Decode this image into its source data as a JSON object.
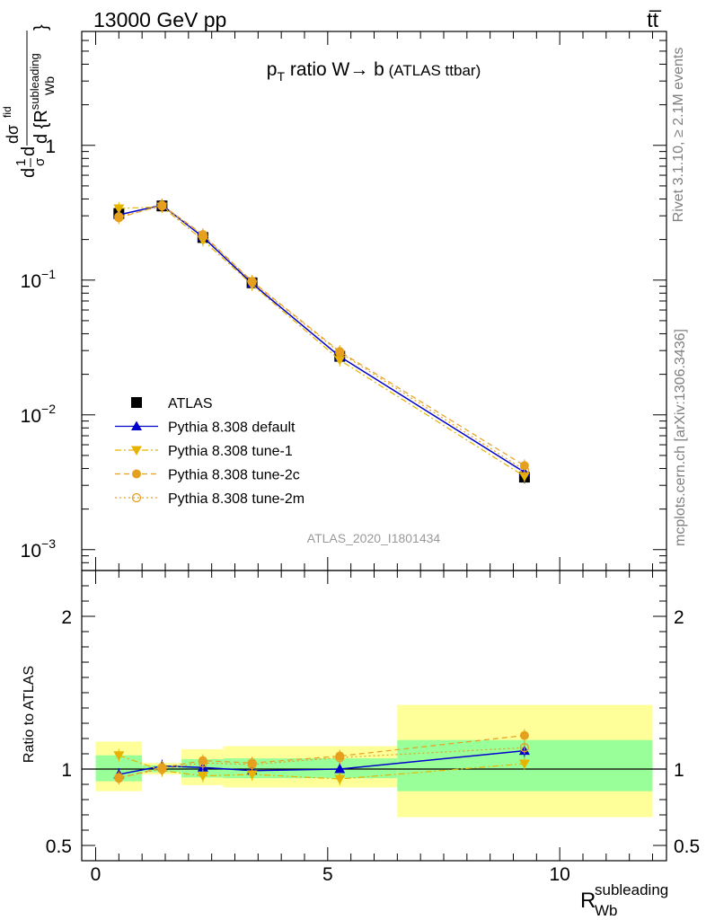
{
  "header": {
    "left_label": "13000 GeV pp",
    "right_label": "tt̅"
  },
  "side_labels": {
    "rivet": "Rivet 3.1.10, ≥ 2.1M events",
    "mcplots": "mcplots.cern.ch [arXiv:1306.3436]"
  },
  "chart_data": [
    {
      "panel": "main",
      "type": "line",
      "title_prefix": "p",
      "title_sub": "T",
      "title_main": " ratio W→ b",
      "title_suffix": " (ATLAS ttbar)",
      "watermark": "ATLAS_2020_I1801434",
      "ylabel_parts": [
        "d",
        "1",
        "σ",
        "d",
        "dσ",
        "fid",
        "d {R",
        "subleading",
        "Wb",
        "}"
      ],
      "yscale": "log",
      "ylim": [
        0.0007,
        7
      ],
      "xlim": [
        -0.3,
        12.3
      ],
      "y_ticks": [
        {
          "value": 0.001,
          "label_base": "10",
          "label_exp": "−3"
        },
        {
          "value": 0.01,
          "label_base": "10",
          "label_exp": "−2"
        },
        {
          "value": 0.1,
          "label_base": "10",
          "label_exp": "−1"
        },
        {
          "value": 1,
          "label_base": "1",
          "label_exp": ""
        }
      ],
      "x": [
        0.5,
        1.43,
        2.31,
        3.37,
        5.26,
        9.24
      ],
      "series": [
        {
          "name": "ATLAS",
          "color": "#000000",
          "marker": "square",
          "line": "none",
          "values": [
            0.312,
            0.355,
            0.207,
            0.0955,
            0.0272,
            0.00345
          ]
        },
        {
          "name": "Pythia 8.308 default",
          "color": "#0000cc",
          "marker": "triangle-up",
          "line": "solid",
          "values": [
            0.305,
            0.36,
            0.209,
            0.0945,
            0.0271,
            0.00375
          ]
        },
        {
          "name": "Pythia 8.308 tune-1",
          "color": "#e6b400",
          "marker": "triangle-down",
          "line": "dashdot",
          "values": [
            0.34,
            0.35,
            0.198,
            0.0925,
            0.0255,
            0.0035
          ]
        },
        {
          "name": "Pythia 8.308 tune-2c",
          "color": "#e6a020",
          "marker": "circle",
          "line": "dashed",
          "values": [
            0.29,
            0.36,
            0.218,
            0.098,
            0.0295,
            0.0042
          ]
        },
        {
          "name": "Pythia 8.308 tune-2m",
          "color": "#e6a020",
          "marker": "open-circle",
          "line": "dotted",
          "values": [
            0.295,
            0.355,
            0.215,
            0.097,
            0.029,
            0.0039
          ]
        }
      ],
      "legend_position": "lower-left"
    },
    {
      "panel": "ratio",
      "type": "line",
      "ylabel": "Ratio to ATLAS",
      "xlabel_main": "R",
      "xlabel_sup": "subleading",
      "xlabel_sub": "Wb",
      "ylim": [
        0.4,
        2.3
      ],
      "xlim": [
        -0.3,
        12.3
      ],
      "y_tick_labels": [
        "0.5",
        "1",
        "2"
      ],
      "y_tick_values": [
        0.5,
        1,
        2
      ],
      "x_tick_labels": [
        "0",
        "5",
        "10"
      ],
      "x_tick_values": [
        0,
        5,
        10
      ],
      "bands": [
        {
          "x_low": 0.0,
          "x_high": 1.0,
          "green": [
            0.92,
            1.09
          ],
          "yellow": [
            0.855,
            1.18
          ]
        },
        {
          "x_low": 1.0,
          "x_high": 1.85,
          "green": [
            0.98,
            1.025
          ],
          "yellow": [
            0.965,
            1.04
          ]
        },
        {
          "x_low": 1.85,
          "x_high": 2.75,
          "green": [
            0.945,
            1.065
          ],
          "yellow": [
            0.895,
            1.13
          ]
        },
        {
          "x_low": 2.75,
          "x_high": 6.5,
          "green": [
            0.94,
            1.07
          ],
          "yellow": [
            0.88,
            1.15
          ]
        },
        {
          "x_low": 6.5,
          "x_high": 12.0,
          "green": [
            0.855,
            1.19
          ],
          "yellow": [
            0.685,
            1.42
          ]
        }
      ],
      "x": [
        0.5,
        1.43,
        2.31,
        3.37,
        5.26,
        9.24
      ],
      "series": [
        {
          "name": "Pythia 8.308 default",
          "color": "#0000cc",
          "marker": "triangle-up",
          "line": "solid",
          "values": [
            0.965,
            1.02,
            1.01,
            0.99,
            1.0,
            1.12
          ]
        },
        {
          "name": "Pythia 8.308 tune-1",
          "color": "#e6b400",
          "marker": "triangle-down",
          "line": "dashdot",
          "values": [
            1.09,
            0.99,
            0.955,
            0.965,
            0.935,
            1.035
          ]
        },
        {
          "name": "Pythia 8.308 tune-2c",
          "color": "#e6a020",
          "marker": "circle",
          "line": "dashed",
          "values": [
            0.94,
            1.01,
            1.055,
            1.04,
            1.085,
            1.22
          ]
        },
        {
          "name": "Pythia 8.308 tune-2m",
          "color": "#e6a020",
          "marker": "open-circle",
          "line": "dotted",
          "values": [
            0.945,
            1.0,
            1.04,
            1.03,
            1.075,
            1.14
          ]
        }
      ]
    }
  ],
  "colors": {
    "band_green": "#99ff99",
    "band_yellow": "#ffff99",
    "axis": "#000000",
    "side_text": "#808080",
    "watermark": "#999999"
  }
}
